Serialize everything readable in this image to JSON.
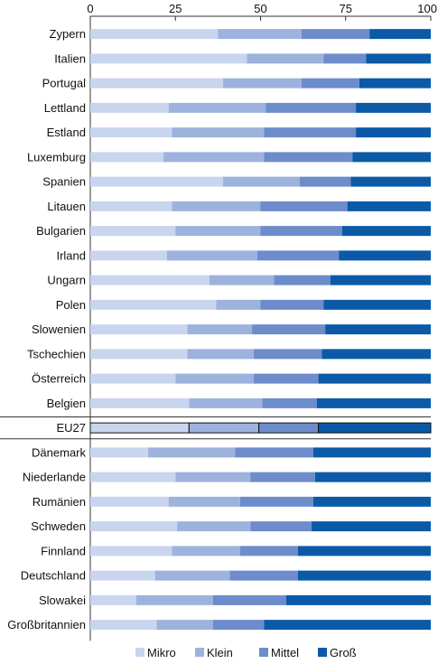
{
  "chart_data": {
    "type": "bar",
    "orientation": "horizontal",
    "stacked": true,
    "percent": true,
    "xlim": [
      0,
      100
    ],
    "xticks": [
      0,
      25,
      50,
      75,
      100
    ],
    "axis_position": "top",
    "grid": false,
    "legend_position": "bottom",
    "highlight_category": "EU27",
    "categories": [
      "Zypern",
      "Italien",
      "Portugal",
      "Lettland",
      "Estland",
      "Luxemburg",
      "Spanien",
      "Litauen",
      "Bulgarien",
      "Irland",
      "Ungarn",
      "Polen",
      "Slowenien",
      "Tschechien",
      "Österreich",
      "Belgien",
      "EU27",
      "Dänemark",
      "Niederlande",
      "Rumänien",
      "Schweden",
      "Finnland",
      "Deutschland",
      "Slowakei",
      "Großbritannien"
    ],
    "series": [
      {
        "name": "Mikro",
        "color": "#c9d5ee",
        "values": [
          37.5,
          46,
          39,
          23,
          24,
          21.5,
          39,
          24,
          25,
          22.5,
          35,
          37,
          28.5,
          28.5,
          25,
          29,
          29,
          17,
          25,
          23,
          25.5,
          24,
          19,
          13.5,
          19.5
        ]
      },
      {
        "name": "Klein",
        "color": "#9db2dd",
        "values": [
          24.5,
          22.5,
          23,
          28.5,
          27,
          29.5,
          22.5,
          26,
          25,
          26.5,
          19,
          13,
          19,
          19.5,
          23,
          21.5,
          20.5,
          25.5,
          22,
          21,
          21.5,
          20,
          22,
          22.5,
          16.5
        ]
      },
      {
        "name": "Mittel",
        "color": "#6d8ccb",
        "values": [
          20,
          12.5,
          17,
          26.5,
          27,
          26,
          15,
          25.5,
          24,
          24,
          16.5,
          18.5,
          21.5,
          20,
          19,
          16,
          17.5,
          23,
          19,
          21.5,
          18,
          17,
          20,
          21.5,
          15
        ]
      },
      {
        "name": "Groß",
        "color": "#0a5aa8",
        "values": [
          18,
          19,
          21,
          22,
          22,
          23,
          23.5,
          24.5,
          26,
          27,
          29.5,
          31.5,
          31,
          32,
          33,
          33.5,
          33,
          34.5,
          34,
          34.5,
          35,
          39,
          39,
          42.5,
          49
        ]
      }
    ]
  }
}
